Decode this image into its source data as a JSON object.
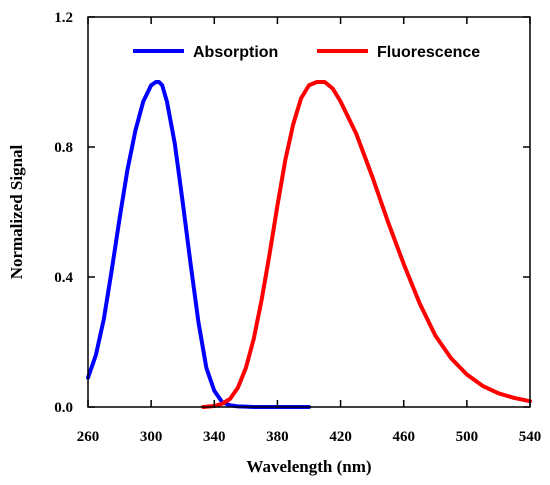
{
  "chart_data": {
    "type": "line",
    "title": "",
    "xlabel": "Wavelength (nm)",
    "ylabel": "Normalized Signal",
    "xlim": [
      260,
      540
    ],
    "ylim": [
      0,
      1.2
    ],
    "x_ticks": [
      260,
      300,
      340,
      380,
      420,
      460,
      500,
      540
    ],
    "x_tick_labels": [
      "260",
      "300",
      "340",
      "380",
      "420",
      "460",
      "500",
      "540"
    ],
    "y_ticks": [
      0,
      0.4,
      0.8,
      1.2
    ],
    "y_tick_labels": [
      "0.0",
      "0.4",
      "0.8",
      "1.2"
    ],
    "grid": false,
    "legend_position": "top",
    "series": [
      {
        "name": "Absorption",
        "color": "#0000ff",
        "x": [
          260,
          265,
          270,
          275,
          280,
          285,
          290,
          295,
          300,
          303,
          305,
          307,
          310,
          315,
          320,
          325,
          330,
          335,
          340,
          345,
          350,
          355,
          360,
          365,
          370,
          380,
          390,
          400
        ],
        "y": [
          0.09,
          0.16,
          0.27,
          0.42,
          0.58,
          0.73,
          0.85,
          0.94,
          0.99,
          1.0,
          1.0,
          0.99,
          0.94,
          0.81,
          0.63,
          0.44,
          0.26,
          0.12,
          0.05,
          0.015,
          0.005,
          0.002,
          0.001,
          0.0,
          0.0,
          0.0,
          0.0,
          0.0
        ]
      },
      {
        "name": "Fluorescence",
        "color": "#ff0000",
        "x": [
          333,
          340,
          345,
          350,
          355,
          360,
          365,
          370,
          375,
          380,
          385,
          390,
          395,
          400,
          405,
          410,
          415,
          420,
          430,
          440,
          450,
          460,
          470,
          480,
          490,
          500,
          510,
          520,
          530,
          540
        ],
        "y": [
          0.0,
          0.003,
          0.01,
          0.025,
          0.06,
          0.12,
          0.21,
          0.33,
          0.47,
          0.62,
          0.76,
          0.87,
          0.95,
          0.99,
          1.0,
          1.0,
          0.98,
          0.94,
          0.84,
          0.71,
          0.57,
          0.44,
          0.32,
          0.22,
          0.15,
          0.1,
          0.065,
          0.042,
          0.028,
          0.018
        ]
      }
    ]
  }
}
